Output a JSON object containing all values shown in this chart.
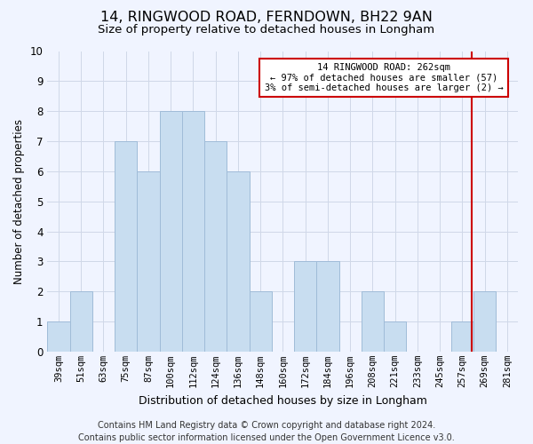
{
  "title_line1": "14, RINGWOOD ROAD, FERNDOWN, BH22 9AN",
  "title_line2": "Size of property relative to detached houses in Longham",
  "xlabel": "Distribution of detached houses by size in Longham",
  "ylabel": "Number of detached properties",
  "categories": [
    "39sqm",
    "51sqm",
    "63sqm",
    "75sqm",
    "87sqm",
    "100sqm",
    "112sqm",
    "124sqm",
    "136sqm",
    "148sqm",
    "160sqm",
    "172sqm",
    "184sqm",
    "196sqm",
    "208sqm",
    "221sqm",
    "233sqm",
    "245sqm",
    "257sqm",
    "269sqm",
    "281sqm"
  ],
  "values": [
    1,
    2,
    0,
    7,
    6,
    8,
    8,
    7,
    6,
    2,
    0,
    3,
    3,
    0,
    2,
    1,
    0,
    0,
    1,
    2,
    0
  ],
  "bar_color": "#c8ddf0",
  "bar_edge_color": "#a0bcd8",
  "vline_color": "#cc0000",
  "annotation_text": "14 RINGWOOD ROAD: 262sqm\n← 97% of detached houses are smaller (57)\n3% of semi-detached houses are larger (2) →",
  "annotation_box_color": "#ffffff",
  "annotation_box_edge": "#cc0000",
  "ylim": [
    0,
    10
  ],
  "yticks": [
    0,
    1,
    2,
    3,
    4,
    5,
    6,
    7,
    8,
    9,
    10
  ],
  "footer_line1": "Contains HM Land Registry data © Crown copyright and database right 2024.",
  "footer_line2": "Contains public sector information licensed under the Open Government Licence v3.0.",
  "bg_color": "#f0f4ff",
  "grid_color": "#d0d8e8",
  "title1_fontsize": 11.5,
  "title2_fontsize": 9.5,
  "xlabel_fontsize": 9,
  "ylabel_fontsize": 8.5,
  "tick_fontsize": 7.5,
  "annot_fontsize": 7.5,
  "footer_fontsize": 7
}
